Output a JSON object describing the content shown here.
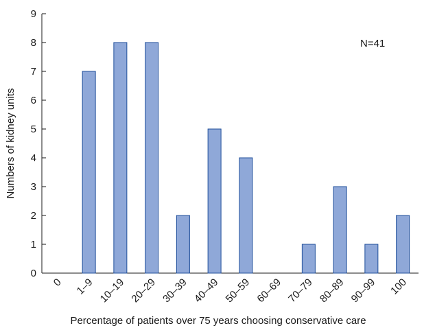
{
  "chart_data": {
    "type": "bar",
    "title": "",
    "xlabel": "Percentage of patients over 75 years choosing conservative care",
    "ylabel": "Numbers of kidney units",
    "annotation": "N=41",
    "categories": [
      "0",
      "1–9",
      "10–19",
      "20–29",
      "30–39",
      "40–49",
      "50–59",
      "60–69",
      "70–79",
      "80–89",
      "90–99",
      "100"
    ],
    "values": [
      0,
      7,
      8,
      8,
      2,
      5,
      4,
      0,
      1,
      3,
      1,
      2
    ],
    "ylim": [
      0,
      9
    ],
    "yticks": [
      "0",
      "1",
      "2",
      "3",
      "4",
      "5",
      "6",
      "7",
      "8",
      "9"
    ],
    "grid": false,
    "bar_color": "#8fa8d8",
    "bar_edge_color": "#1f4e9a"
  }
}
